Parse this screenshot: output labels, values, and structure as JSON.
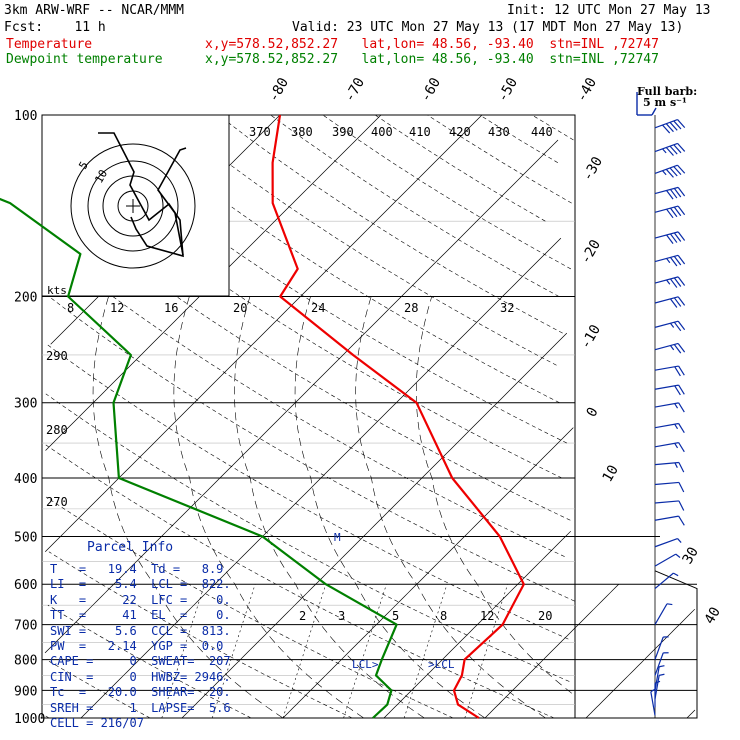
{
  "header": {
    "model": "3km ARW-WRF -- NCAR/MMM",
    "init": "Init: 12 UTC Mon 27 May 13",
    "fcst": "Fcst:    11 h",
    "valid": "Valid: 23 UTC Mon 27 May 13 (17 MDT Mon 27 May 13)",
    "temp_label": "Temperature",
    "temp_info": "x,y=578.52,852.27   lat,lon= 48.56, -93.40  stn=INL ,72747",
    "dew_label": "Dewpoint temperature",
    "dew_info": "x,y=578.52,852.27   lat,lon= 48.56, -93.40  stn=INL ,72747",
    "full_barb": "Full barb:",
    "full_barb_value": "5 m s⁻¹"
  },
  "parcel": {
    "title": "Parcel Info",
    "rows": [
      "T   =   19.4  Td =   8.9",
      "LI  =    5.4  LCL =  822.",
      "K   =     22  LFC =    0.",
      "TT  =     41  EL  =    0.",
      "SWI =    5.6  CCL =  813.",
      "PW  =   2.14  YGP =  0.0",
      "CAPE =     0  SWEAT=  207",
      "CIN  =     0  HWBZ= 2946.",
      "Tc  =   20.0  SHEAR=  20.",
      "SREH =     1  LAPSE=  5.6",
      "CELL = 216/07"
    ]
  },
  "chart_data": {
    "type": "line",
    "title": "",
    "y_axis": "pressure (hPa, log scale)",
    "pressure_labels": [
      "100",
      "200",
      "300",
      "400",
      "500",
      "600",
      "700",
      "800",
      "900",
      "1000"
    ],
    "isotherm_labels": [
      "-80",
      "-70",
      "-60",
      "-50",
      "-40",
      "-30",
      "-20",
      "-10",
      "0",
      "10",
      "20",
      "30",
      "40"
    ],
    "theta_labels": [
      "370",
      "380",
      "390",
      "400",
      "410",
      "420",
      "430",
      "440"
    ],
    "hodo_speed_labels": [
      "8",
      "12",
      "16",
      "20",
      "24",
      "28",
      "32"
    ],
    "hodo_rings": [
      "5",
      "10"
    ],
    "hodo_units": "kts",
    "mixing_ratio_labels": [
      "2",
      "3",
      "5",
      "8",
      "12",
      "20"
    ],
    "left_labels": [
      "290",
      "280",
      "270"
    ],
    "markers": [
      "LCL",
      "LCL",
      "M"
    ],
    "series": [
      {
        "name": "Temperature",
        "color": "#ee0000",
        "points": [
          [
            1000,
            19.4
          ],
          [
            950,
            16
          ],
          [
            900,
            14.2
          ],
          [
            850,
            13.5
          ],
          [
            800,
            12.2
          ],
          [
            700,
            12.5
          ],
          [
            600,
            10.6
          ],
          [
            500,
            3.5
          ],
          [
            400,
            -7
          ],
          [
            300,
            -18
          ],
          [
            250,
            -29
          ],
          [
            200,
            -42
          ],
          [
            180,
            -43
          ],
          [
            140,
            -52
          ],
          [
            120,
            -56
          ],
          [
            100,
            -60
          ]
        ]
      },
      {
        "name": "Dewpoint temperature",
        "color": "#008000",
        "points": [
          [
            1000,
            8.9
          ],
          [
            950,
            9
          ],
          [
            900,
            8
          ],
          [
            850,
            5
          ],
          [
            800,
            4
          ],
          [
            700,
            2
          ],
          [
            600,
            -9
          ],
          [
            500,
            -20
          ],
          [
            400,
            -40
          ],
          [
            300,
            -48
          ],
          [
            250,
            -51
          ],
          [
            200,
            -63
          ],
          [
            170,
            -66
          ],
          [
            140,
            -78
          ],
          [
            120,
            -92
          ],
          [
            100,
            -100
          ]
        ]
      }
    ],
    "wind_barbs": [
      {
        "p": 105,
        "dir": 250,
        "spd": 50
      },
      {
        "p": 115,
        "dir": 250,
        "spd": 45
      },
      {
        "p": 125,
        "dir": 250,
        "spd": 45
      },
      {
        "p": 135,
        "dir": 255,
        "spd": 40
      },
      {
        "p": 145,
        "dir": 255,
        "spd": 40
      },
      {
        "p": 160,
        "dir": 255,
        "spd": 40
      },
      {
        "p": 175,
        "dir": 255,
        "spd": 35
      },
      {
        "p": 190,
        "dir": 255,
        "spd": 35
      },
      {
        "p": 205,
        "dir": 255,
        "spd": 30
      },
      {
        "p": 225,
        "dir": 255,
        "spd": 25
      },
      {
        "p": 245,
        "dir": 255,
        "spd": 25
      },
      {
        "p": 265,
        "dir": 260,
        "spd": 20
      },
      {
        "p": 285,
        "dir": 260,
        "spd": 20
      },
      {
        "p": 305,
        "dir": 260,
        "spd": 15
      },
      {
        "p": 330,
        "dir": 260,
        "spd": 15
      },
      {
        "p": 355,
        "dir": 260,
        "spd": 15
      },
      {
        "p": 380,
        "dir": 265,
        "spd": 15
      },
      {
        "p": 410,
        "dir": 265,
        "spd": 10
      },
      {
        "p": 440,
        "dir": 265,
        "spd": 10
      },
      {
        "p": 470,
        "dir": 260,
        "spd": 10
      },
      {
        "p": 520,
        "dir": 250,
        "spd": 5
      },
      {
        "p": 560,
        "dir": 240,
        "spd": 5
      },
      {
        "p": 610,
        "dir": 230,
        "spd": 5
      },
      {
        "p": 700,
        "dir": 210,
        "spd": 5
      },
      {
        "p": 800,
        "dir": 200,
        "spd": 5
      },
      {
        "p": 850,
        "dir": 200,
        "spd": 5
      },
      {
        "p": 900,
        "dir": 190,
        "spd": 5
      },
      {
        "p": 930,
        "dir": 190,
        "spd": 5
      },
      {
        "p": 960,
        "dir": 180,
        "spd": 5
      },
      {
        "p": 990,
        "dir": 170,
        "spd": 5
      }
    ]
  },
  "colors": {
    "temp": "#ee0000",
    "dew": "#008000",
    "barb": "#0a2ca8",
    "grid": "#000000"
  }
}
